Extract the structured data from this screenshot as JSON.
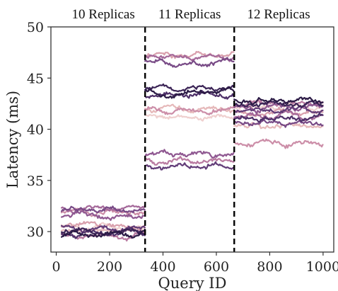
{
  "chart_data": {
    "type": "line",
    "title": "",
    "xlabel": "Query ID",
    "ylabel": "Latency (ms)",
    "xlim": [
      -20,
      1040
    ],
    "ylim": [
      28,
      50
    ],
    "xticks": [
      0,
      200,
      400,
      600,
      800,
      1000
    ],
    "yticks": [
      30,
      35,
      40,
      45,
      50
    ],
    "grid": false,
    "legend": "none",
    "dividers": [
      {
        "x": 333,
        "style": "dashed",
        "color": "#000000"
      },
      {
        "x": 667,
        "style": "dashed",
        "color": "#000000"
      }
    ],
    "regions": [
      {
        "label": "10 Replicas",
        "x_start": 20,
        "x_end": 333
      },
      {
        "label": "11 Replicas",
        "x_start": 333,
        "x_end": 667
      },
      {
        "label": "12 Replicas",
        "x_start": 667,
        "x_end": 1000
      }
    ],
    "series": [
      {
        "color": "#efd0cf",
        "levels": [
          30.5,
          41.2,
          42.3
        ]
      },
      {
        "color": "#e6b9ba",
        "levels": [
          30.1,
          42.0,
          40.3
        ]
      },
      {
        "color": "#d9a0ad",
        "levels": [
          30.6,
          47.3,
          41.6
        ]
      },
      {
        "color": "#cc8ea8",
        "levels": [
          31.9,
          41.9,
          38.6
        ]
      },
      {
        "color": "#b97aa1",
        "levels": [
          29.6,
          36.9,
          42.6
        ]
      },
      {
        "color": "#a46899",
        "levels": [
          32.3,
          47.1,
          41.3
        ]
      },
      {
        "color": "#8f5891",
        "levels": [
          31.6,
          37.6,
          42.1
        ]
      },
      {
        "color": "#784a86",
        "levels": [
          32.1,
          46.6,
          40.6
        ]
      },
      {
        "color": "#623c78",
        "levels": [
          30.3,
          36.4,
          41.9
        ]
      },
      {
        "color": "#4d2f68",
        "levels": [
          29.8,
          43.4,
          41.1
        ]
      },
      {
        "color": "#3b2456",
        "levels": [
          30.1,
          44.0,
          42.4
        ]
      },
      {
        "color": "#2b1a45",
        "levels": [
          29.7,
          43.6,
          42.8
        ]
      }
    ]
  }
}
